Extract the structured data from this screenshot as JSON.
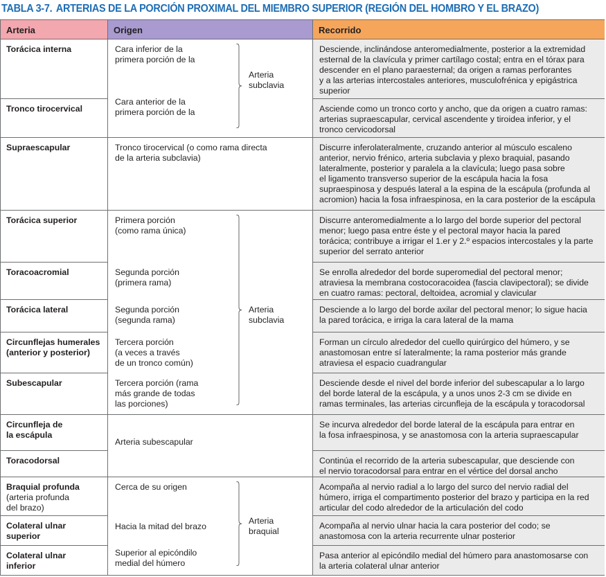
{
  "title": {
    "number": "TABLA 3-7.",
    "text": "ARTERIAS DE LA PORCIÓN PROXIMAL DEL MIEMBRO SUPERIOR (REGIÓN DEL HOMBRO Y EL BRAZO)"
  },
  "colors": {
    "title": "#1d6db4",
    "header_arteria": "#f3a7ae",
    "header_origen": "#a99ad0",
    "header_recorrido": "#f5a65b",
    "recorrido_bg": "#ebebeb"
  },
  "headers": {
    "arteria": "Arteria",
    "origen": "Origen",
    "recorrido": "Recorrido"
  },
  "rows": [
    {
      "arteria": "Torácica interna",
      "recorrido": "Desciende, inclinándose anteromedialmente, posterior a la extremidad\nesternal de la clavícula y primer cartílago costal; entra en el tórax para\ndescender en el plano paraesternal; da origen a ramas perforantes\ny a las arterias intercostales anteriores, musculofrénica y epigástrica\nsuperior"
    },
    {
      "arteria": "Tronco tirocervical",
      "recorrido": "Asciende como un tronco corto y ancho, que da origen a cuatro ramas:\narterias supraescapular, cervical ascendente y tiroidea inferior, y el\ntronco cervicodorsal"
    },
    {
      "arteria": "Supraescapular",
      "recorrido": "Discurre inferolateralmente, cruzando anterior al músculo escaleno\nanterior, nervio frénico, arteria subclavia y plexo braquial, pasando\nlateralmente, posterior y paralela a la clavícula; luego pasa sobre\nel ligamento transverso superior de la escápula hacia la fosa\nsupraespinosa y después lateral a la espina de la escápula (profunda al\nacromion) hacia la fosa infraespinosa, en la cara posterior de la escápula"
    },
    {
      "arteria": "Torácica superior",
      "recorrido": "Discurre anteromedialmente a lo largo del borde superior del pectoral\nmenor; luego pasa entre éste y el pectoral mayor hacia la pared\ntorácica; contribuye a irrigar el 1.er y 2.º espacios intercostales y la parte\nsuperior del serrato anterior"
    },
    {
      "arteria": "Toracoacromial",
      "recorrido": "Se enrolla alrededor del borde superomedial del pectoral menor;\natraviesa la membrana costocoracoidea (fascia clavipectoral); se divide\nen cuatro ramas: pectoral, deltoidea, acromial y clavicular"
    },
    {
      "arteria": "Torácica lateral",
      "recorrido": "Desciende a lo largo del borde axilar del pectoral menor; lo sigue hacia\nla pared torácica, e irriga la cara lateral de la mama"
    },
    {
      "arteria": "Circunflejas humerales\n(anterior y posterior)",
      "recorrido": "Forman un círculo alrededor del cuello quirúrgico del húmero, y se\nanastomosan entre sí lateralmente; la rama posterior más grande\natraviesa el espacio cuadrangular"
    },
    {
      "arteria": "Subescapular",
      "recorrido": "Desciende desde el nivel del borde inferior del subescapular a lo largo\ndel borde lateral de la escápula, y a unos unos 2-3 cm se divide en\nramas terminales, las arterias circunfleja de la escápula y toracodorsal"
    },
    {
      "arteria": "Circunfleja de\nla escápula",
      "recorrido": "Se incurva alrededor del borde lateral de la escápula para entrar en\nla fosa infraespinosa, y se anastomosa con la arteria supraescapular"
    },
    {
      "arteria": "Toracodorsal",
      "recorrido": "Continúa el recorrido de la arteria subescapular, que desciende con\nel nervio toracodorsal para entrar en el vértice del dorsal ancho"
    },
    {
      "arteria": "Braquial profunda",
      "arteria_sub": "(arteria profunda\ndel brazo)",
      "recorrido": "Acompaña al nervio radial a lo largo del surco del nervio radial del\nhúmero, irriga el compartimento posterior del brazo y participa en la red\narticular del codo alrededor de la articulación del codo"
    },
    {
      "arteria": "Colateral ulnar\nsuperior",
      "recorrido": "Acompaña al nervio ulnar hacia la cara posterior del codo; se\nanastomosa con la arteria recurrente ulnar posterior"
    },
    {
      "arteria": "Colateral ulnar\ninferior",
      "recorrido": "Pasa anterior al epicóndilo medial del húmero para anastomosarse con\nla arteria colateral ulnar anterior"
    }
  ],
  "origen_groups": [
    {
      "texts": [
        "Cara inferior de la\nprimera porción de la",
        "Cara anterior de la\nprimera porción de la"
      ],
      "label": "Arteria\nsubclavia"
    },
    {
      "texts": [
        "Tronco tirocervical (o como rama directa\nde la arteria subclavia)"
      ]
    },
    {
      "texts": [
        "Primera porción\n(como rama única)",
        "Segunda porción\n(primera rama)",
        "Segunda porción\n(segunda rama)",
        "Tercera porción\n(a veces a través\nde un tronco común)",
        "Tercera porción (rama\nmás grande de todas\nlas porciones)"
      ],
      "label": "Arteria\nsubclavia"
    },
    {
      "texts": [
        "Arteria subescapular"
      ]
    },
    {
      "texts": [
        "Cerca de su origen",
        "Hacia la mitad del brazo",
        "Superior al epicóndilo\nmedial del húmero"
      ],
      "label": "Arteria\nbraquial"
    }
  ]
}
